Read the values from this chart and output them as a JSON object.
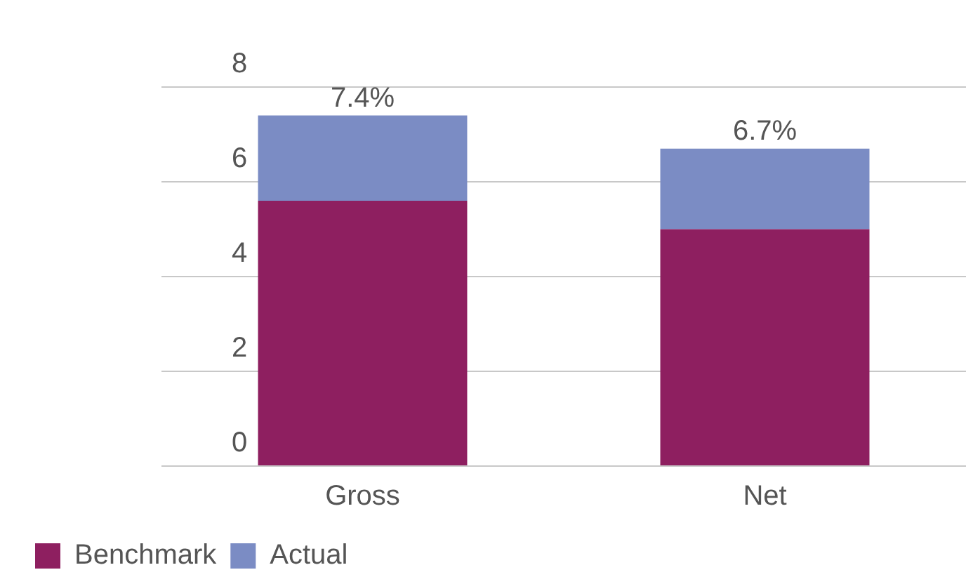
{
  "chart_data": {
    "type": "bar",
    "categories": [
      "Gross",
      "Net"
    ],
    "stacked": true,
    "series": [
      {
        "name": "Benchmark",
        "color": "#8e1f60",
        "values": [
          5.6,
          5.0
        ]
      },
      {
        "name": "Actual",
        "color": "#7b8cc4",
        "values": [
          1.8,
          1.7
        ]
      }
    ],
    "totals": [
      "7.4%",
      "6.7%"
    ],
    "ylim": [
      0,
      8
    ],
    "yticks": [
      0,
      2,
      4,
      6,
      8
    ],
    "grid": "y",
    "legend": "bottom left"
  }
}
